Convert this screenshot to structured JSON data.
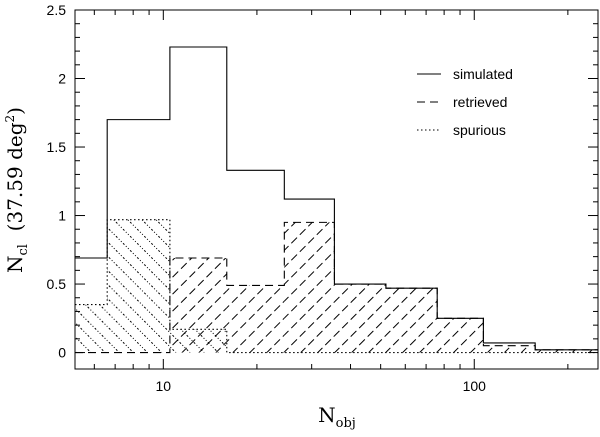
{
  "chart_data": {
    "type": "histogram",
    "x_scale": "log",
    "xlim": [
      5.2,
      250
    ],
    "ylim": [
      -0.12,
      2.5
    ],
    "xlabel": "N",
    "xlabel_sub": "obj",
    "ylabel": "N",
    "ylabel_sub": "cl",
    "ylabel_suffix": "  (37.59 deg",
    "ylabel_sup": "2",
    "ylabel_end": ")",
    "x_ticks": [
      10,
      100
    ],
    "y_ticks": [
      0,
      0.5,
      1,
      1.5,
      2,
      2.5
    ],
    "y_tick_labels": [
      "0",
      "0.5",
      "1",
      "1.5",
      "2",
      "2.5"
    ],
    "legend": {
      "position": "top-right",
      "entries": [
        {
          "label": "simulated",
          "style": "solid"
        },
        {
          "label": "retrieved",
          "style": "dashed"
        },
        {
          "label": "spurious",
          "style": "dotted"
        }
      ]
    },
    "series": [
      {
        "name": "simulated",
        "edges": [
          5.2,
          6.6,
          10.5,
          16.0,
          24.5,
          35.5,
          52.0,
          76.0,
          107.0,
          157.0,
          250.0
        ],
        "values": [
          0.69,
          1.7,
          2.23,
          1.33,
          1.12,
          0.5,
          0.47,
          0.25,
          0.07,
          0.02
        ]
      },
      {
        "name": "retrieved",
        "edges": [
          5.2,
          6.6,
          10.5,
          16.0,
          24.5,
          35.5,
          52.0,
          76.0,
          107.0,
          157.0,
          250.0
        ],
        "values": [
          0.0,
          0.0,
          0.69,
          0.49,
          0.95,
          0.5,
          0.47,
          0.25,
          0.05,
          0.02
        ]
      },
      {
        "name": "spurious",
        "edges": [
          5.2,
          6.6,
          10.5,
          16.0,
          24.5,
          35.5,
          52.0,
          76.0,
          107.0,
          157.0,
          250.0
        ],
        "values": [
          0.35,
          0.97,
          0.17,
          0.0,
          0.0,
          0.0,
          0.0,
          0.0,
          0.0,
          0.0
        ]
      }
    ]
  }
}
